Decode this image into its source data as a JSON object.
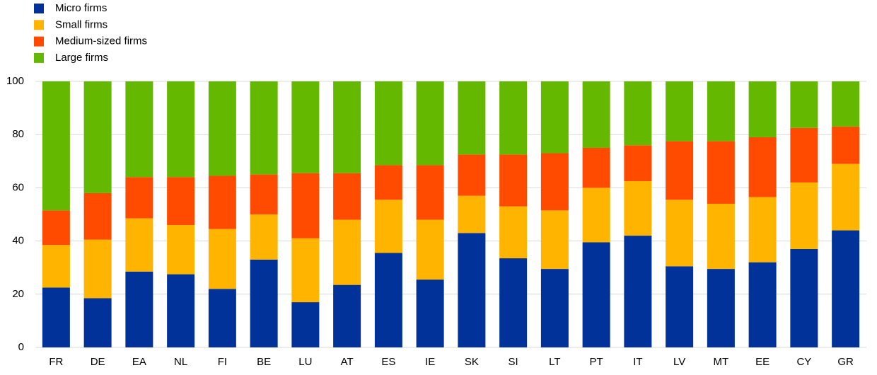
{
  "chart_data": {
    "type": "stacked_bar",
    "categories": [
      "FR",
      "DE",
      "EA",
      "NL",
      "FI",
      "BE",
      "LU",
      "AT",
      "ES",
      "IE",
      "SK",
      "SI",
      "LT",
      "PT",
      "IT",
      "LV",
      "MT",
      "EE",
      "CY",
      "GR"
    ],
    "series": [
      {
        "name": "Micro firms",
        "color": "#003299",
        "values": [
          22.5,
          18.5,
          28.5,
          27.5,
          22,
          33,
          17,
          23.5,
          35.5,
          25.5,
          43,
          33.5,
          29.5,
          39.5,
          42,
          30.5,
          29.5,
          32,
          37,
          44
        ]
      },
      {
        "name": "Small firms",
        "color": "#ffb400",
        "values": [
          16,
          22,
          20,
          18.5,
          22.5,
          17,
          24,
          24.5,
          20,
          22.5,
          14,
          19.5,
          22,
          20.5,
          20.5,
          25,
          24.5,
          24.5,
          25,
          25
        ]
      },
      {
        "name": "Medium-sized firms",
        "color": "#ff4b00",
        "values": [
          13,
          17.5,
          15.5,
          18,
          20,
          15,
          24.5,
          17.5,
          13,
          20.5,
          15.5,
          19.5,
          21.5,
          15,
          13.5,
          22,
          23.5,
          22.5,
          20.5,
          14
        ]
      },
      {
        "name": "Large firms",
        "color": "#65b800",
        "values": [
          48.5,
          42,
          36,
          36,
          35.5,
          35,
          34.5,
          34.5,
          31.5,
          31.5,
          27.5,
          27.5,
          27,
          25,
          24,
          22.5,
          22.5,
          21,
          17.5,
          17
        ]
      }
    ],
    "ylim": [
      0,
      100
    ],
    "yticks": [
      0,
      20,
      40,
      60,
      80,
      100
    ],
    "grid": true,
    "legend": "top-left"
  }
}
